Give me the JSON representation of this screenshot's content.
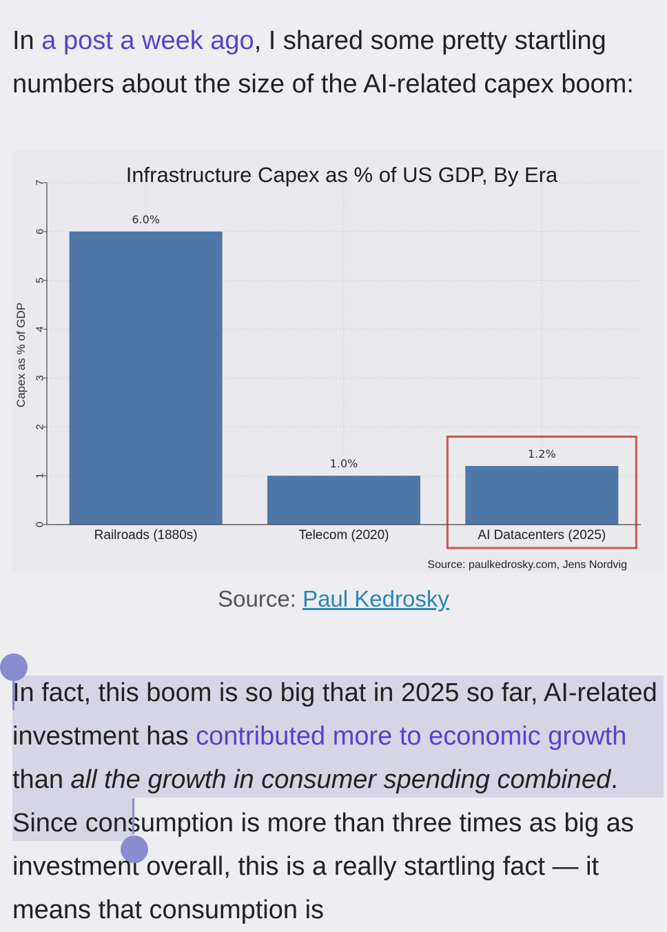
{
  "paragraph1": {
    "pre": "In ",
    "link": "a post a week ago",
    "post": ", I shared some pretty startling numbers about the size of the AI-related capex boom:"
  },
  "figure_caption": {
    "prefix": "Source: ",
    "link": "Paul Kedrosky"
  },
  "paragraph2": {
    "pre": "In fact, this boom is so big that in 2025 so far, AI-related investment has ",
    "link": "contributed more to economic growth",
    "mid": " than ",
    "italic": "all the growth in consumer spending combined",
    "post": ". Since consumption is more than three times as big as investment overall, this is a really startling fact — it means that consumption is"
  },
  "colors": {
    "bar": "#4f77a8",
    "highlight_box": "#c9574d",
    "link": "#5a3fd0",
    "selection": "#d5d5e5",
    "handle": "#8a8ccf"
  },
  "chart_data": {
    "type": "bar",
    "title": "Infrastructure Capex as % of US GDP, By Era",
    "ylabel": "Capex as % of GDP",
    "xlabel": "",
    "categories": [
      "Railroads (1880s)",
      "Telecom (2020)",
      "AI Datacenters (2025)"
    ],
    "values": [
      6.0,
      1.0,
      1.2
    ],
    "data_labels": [
      "6.0%",
      "1.0%",
      "1.2%"
    ],
    "ylim": [
      0,
      7
    ],
    "yticks": [
      "0",
      "1",
      "2",
      "3",
      "4",
      "5",
      "6",
      "7"
    ],
    "grid": true,
    "highlighted_category": "AI Datacenters (2025)",
    "source_note": "Source: paulkedrosky.com, Jens Nordvig"
  }
}
